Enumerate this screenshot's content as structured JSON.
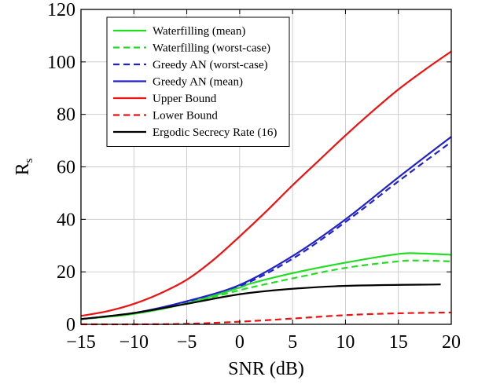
{
  "chart_data": {
    "type": "line",
    "xlabel": "SNR (dB)",
    "ylabel": "R",
    "ylabel_sub": "s",
    "xlim": [
      -15,
      20
    ],
    "ylim": [
      0,
      120
    ],
    "xticks": [
      -15,
      -10,
      -5,
      0,
      5,
      10,
      15,
      20
    ],
    "yticks": [
      0,
      20,
      40,
      60,
      80,
      100,
      120
    ],
    "grid": true,
    "legend_position": "top-left",
    "series": [
      {
        "name": "Waterfilling (mean)",
        "color": "#22dd22",
        "dash": "solid",
        "x": [
          -15,
          -10,
          -5,
          0,
          1,
          5,
          10,
          15,
          17,
          20
        ],
        "y": [
          2,
          4,
          8,
          14,
          15.5,
          19.5,
          23.5,
          26.8,
          27,
          26.5
        ]
      },
      {
        "name": "Waterfilling (worst-case)",
        "color": "#22dd22",
        "dash": "dashed",
        "x": [
          -15,
          -10,
          -5,
          0,
          1,
          5,
          10,
          15,
          17,
          20
        ],
        "y": [
          2,
          4,
          8,
          13,
          14,
          17.5,
          21.5,
          24,
          24.3,
          24
        ]
      },
      {
        "name": "Greedy AN (worst-case)",
        "color": "#2222cc",
        "dash": "dashed",
        "x": [
          -15,
          -10,
          -5,
          0,
          5,
          10,
          15,
          20
        ],
        "y": [
          2,
          4.2,
          8.5,
          14.5,
          25,
          39,
          54.5,
          69.5
        ]
      },
      {
        "name": "Greedy AN (mean)",
        "color": "#2222cc",
        "dash": "solid",
        "x": [
          -15,
          -10,
          -5,
          0,
          5,
          10,
          15,
          20
        ],
        "y": [
          2,
          4.3,
          8.8,
          15,
          26,
          40,
          56,
          71.5
        ]
      },
      {
        "name": "Upper Bound",
        "color": "#ee1111",
        "dash": "solid",
        "x": [
          -15,
          -12.5,
          -10,
          -7.5,
          -5,
          -2.5,
          0,
          2.5,
          5,
          7.5,
          10,
          12.5,
          15,
          17.5,
          20
        ],
        "y": [
          3.2,
          5,
          7.8,
          11.8,
          17,
          24.5,
          33.5,
          43,
          53,
          62.5,
          72,
          81,
          89.5,
          97,
          104
        ]
      },
      {
        "name": "Lower Bound",
        "color": "#ee1111",
        "dash": "dashed",
        "x": [
          -15,
          -10,
          -5,
          0,
          5,
          10,
          15,
          20
        ],
        "y": [
          0,
          0,
          0.2,
          1,
          2.2,
          3.5,
          4.2,
          4.5
        ]
      },
      {
        "name": "Ergodic Secrecy Rate (16)",
        "color": "#000000",
        "dash": "solid",
        "x": [
          -15,
          -10,
          -5,
          1,
          9,
          19
        ],
        "y": [
          2,
          4.3,
          7.8,
          12,
          14.5,
          15.2
        ]
      }
    ]
  }
}
